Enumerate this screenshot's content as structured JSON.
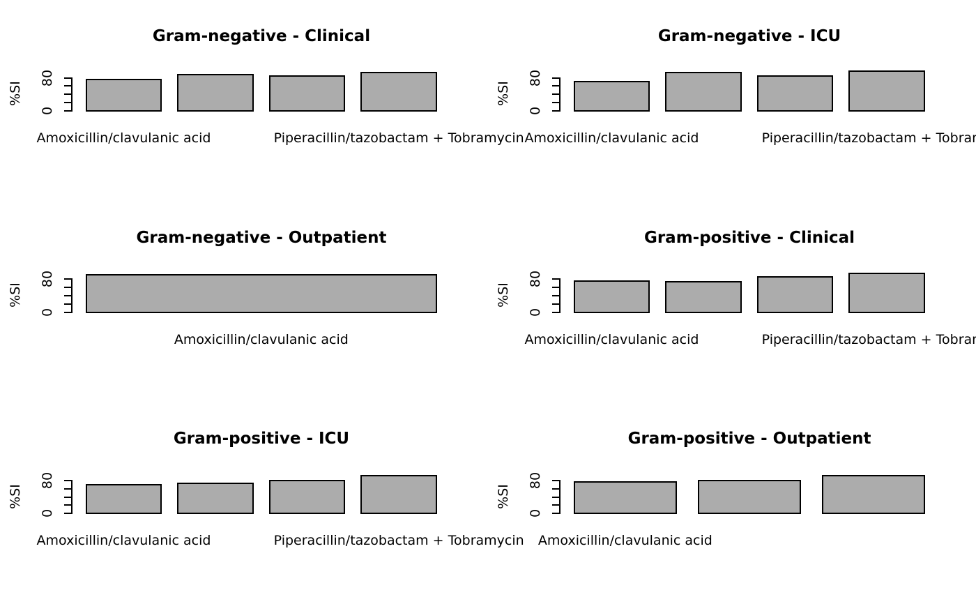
{
  "figure": {
    "background": "#ffffff",
    "bar_fill": "#acacac",
    "bar_border": "#000000",
    "text_color": "#000000",
    "grid": "off",
    "layout": "3 rows x 2 columns of barplot panels"
  },
  "yaxis": {
    "label": "%SI",
    "ticks": [
      0,
      20,
      40,
      60,
      80
    ],
    "tick_labels_shown": [
      "0",
      "80"
    ],
    "range": [
      0,
      100
    ]
  },
  "chart_data": [
    {
      "type": "bar",
      "title": "Gram-negative - Clinical",
      "ylabel": "%SI",
      "ylim": [
        0,
        100
      ],
      "values": [
        75,
        87,
        85,
        93
      ],
      "bar_count": 4,
      "visible_xlabels": [
        {
          "bar": 1,
          "text": "Amoxicillin/clavulanic acid"
        },
        {
          "bar": 4,
          "text": "Piperacillin/tazobactam + Tobramycin"
        }
      ]
    },
    {
      "type": "bar",
      "title": "Gram-negative - ICU",
      "ylabel": "%SI",
      "ylim": [
        0,
        100
      ],
      "values": [
        70,
        92,
        85,
        96
      ],
      "bar_count": 4,
      "visible_xlabels": [
        {
          "bar": 1,
          "text": "Amoxicillin/clavulanic acid"
        },
        {
          "bar": 4,
          "text": "Piperacillin/tazobactam + Tobramycin"
        }
      ]
    },
    {
      "type": "bar",
      "title": "Gram-negative - Outpatient",
      "ylabel": "%SI",
      "ylim": [
        0,
        100
      ],
      "values": [
        91
      ],
      "bar_count": 1,
      "visible_xlabels": [
        {
          "bar": 1,
          "text": "Amoxicillin/clavulanic acid"
        }
      ]
    },
    {
      "type": "bar",
      "title": "Gram-positive - Clinical",
      "ylabel": "%SI",
      "ylim": [
        0,
        100
      ],
      "values": [
        75,
        74,
        86,
        93
      ],
      "bar_count": 4,
      "visible_xlabels": [
        {
          "bar": 1,
          "text": "Amoxicillin/clavulanic acid"
        },
        {
          "bar": 4,
          "text": "Piperacillin/tazobactam + Tobramycin"
        }
      ]
    },
    {
      "type": "bar",
      "title": "Gram-positive - ICU",
      "ylabel": "%SI",
      "ylim": [
        0,
        100
      ],
      "values": [
        70,
        73,
        80,
        92
      ],
      "bar_count": 4,
      "visible_xlabels": [
        {
          "bar": 1,
          "text": "Amoxicillin/clavulanic acid"
        },
        {
          "bar": 4,
          "text": "Piperacillin/tazobactam + Tobramycin"
        }
      ]
    },
    {
      "type": "bar",
      "title": "Gram-positive - Outpatient",
      "ylabel": "%SI",
      "ylim": [
        0,
        100
      ],
      "values": [
        76,
        79,
        92
      ],
      "bar_count": 3,
      "visible_xlabels": [
        {
          "bar": 1,
          "text": "Amoxicillin/clavulanic acid"
        }
      ]
    }
  ]
}
